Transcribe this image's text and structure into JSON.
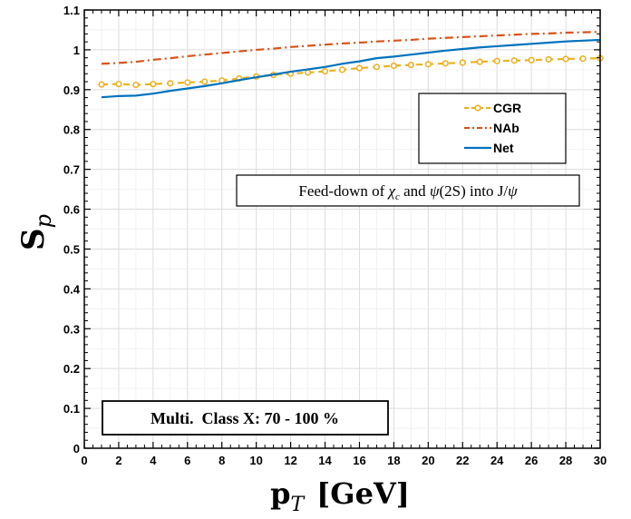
{
  "chart_data": {
    "type": "line",
    "xlabel_main": "p",
    "xlabel_sub": "T",
    "xlabel_unit": "[GeV]",
    "ylabel_main": "S",
    "ylabel_sub": "p",
    "xlim": [
      0,
      30
    ],
    "ylim": [
      0,
      1.1
    ],
    "xticks": [
      0,
      2,
      4,
      6,
      8,
      10,
      12,
      14,
      16,
      18,
      20,
      22,
      24,
      26,
      28,
      30
    ],
    "yticks": [
      0,
      0.1,
      0.2,
      0.3,
      0.4,
      0.5,
      0.6,
      0.7,
      0.8,
      0.9,
      1,
      1.1
    ],
    "xtick_labels": [
      "0",
      "2",
      "4",
      "6",
      "8",
      "10",
      "12",
      "14",
      "16",
      "18",
      "20",
      "22",
      "24",
      "26",
      "28",
      "30"
    ],
    "ytick_labels": [
      "0",
      "0.1",
      "0.2",
      "0.3",
      "0.4",
      "0.5",
      "0.6",
      "0.7",
      "0.8",
      "0.9",
      "1",
      "1.1"
    ],
    "grid": true,
    "legend_position": "top-right",
    "series": [
      {
        "name": "CGR",
        "color": "#EDB120",
        "style": "dashed-circle-markers",
        "x": [
          1,
          2,
          3,
          4,
          5,
          6,
          7,
          8,
          9,
          10,
          11,
          12,
          13,
          14,
          15,
          16,
          17,
          18,
          19,
          20,
          21,
          22,
          23,
          24,
          25,
          26,
          27,
          28,
          29,
          30
        ],
        "y": [
          0.913,
          0.914,
          0.912,
          0.914,
          0.916,
          0.918,
          0.92,
          0.923,
          0.928,
          0.933,
          0.937,
          0.94,
          0.943,
          0.946,
          0.95,
          0.954,
          0.957,
          0.96,
          0.962,
          0.964,
          0.966,
          0.968,
          0.97,
          0.972,
          0.973,
          0.974,
          0.976,
          0.977,
          0.978,
          0.979
        ]
      },
      {
        "name": "NAb",
        "color": "#D95319",
        "style": "dash-dot",
        "x": [
          1,
          2,
          3,
          4,
          5,
          6,
          7,
          8,
          9,
          10,
          11,
          12,
          13,
          14,
          15,
          16,
          17,
          18,
          19,
          20,
          21,
          22,
          23,
          24,
          25,
          26,
          27,
          28,
          29,
          30
        ],
        "y": [
          0.965,
          0.967,
          0.97,
          0.975,
          0.979,
          0.984,
          0.988,
          0.992,
          0.996,
          1.0,
          1.003,
          1.007,
          1.01,
          1.013,
          1.016,
          1.018,
          1.021,
          1.023,
          1.025,
          1.028,
          1.03,
          1.032,
          1.034,
          1.036,
          1.038,
          1.04,
          1.041,
          1.043,
          1.044,
          1.045
        ]
      },
      {
        "name": "Net",
        "color": "#0072BD",
        "style": "solid",
        "x": [
          1,
          2,
          3,
          4,
          5,
          6,
          7,
          8,
          9,
          10,
          11,
          12,
          13,
          14,
          15,
          16,
          17,
          18,
          19,
          20,
          21,
          22,
          23,
          24,
          25,
          26,
          27,
          28,
          29,
          30
        ],
        "y": [
          0.881,
          0.884,
          0.885,
          0.89,
          0.897,
          0.903,
          0.909,
          0.916,
          0.924,
          0.931,
          0.938,
          0.945,
          0.951,
          0.957,
          0.965,
          0.971,
          0.979,
          0.983,
          0.988,
          0.993,
          0.998,
          1.002,
          1.006,
          1.009,
          1.012,
          1.015,
          1.018,
          1.021,
          1.023,
          1.025
        ]
      }
    ],
    "annotations": [
      {
        "id": "feed_down",
        "parts": [
          "Feed-down of ",
          "χ",
          "c",
          " and ",
          "ψ",
          "(2S) into J/",
          "ψ"
        ]
      },
      {
        "id": "multi_class",
        "text": "Multi.  Class X: 70 - 100 %"
      }
    ]
  }
}
